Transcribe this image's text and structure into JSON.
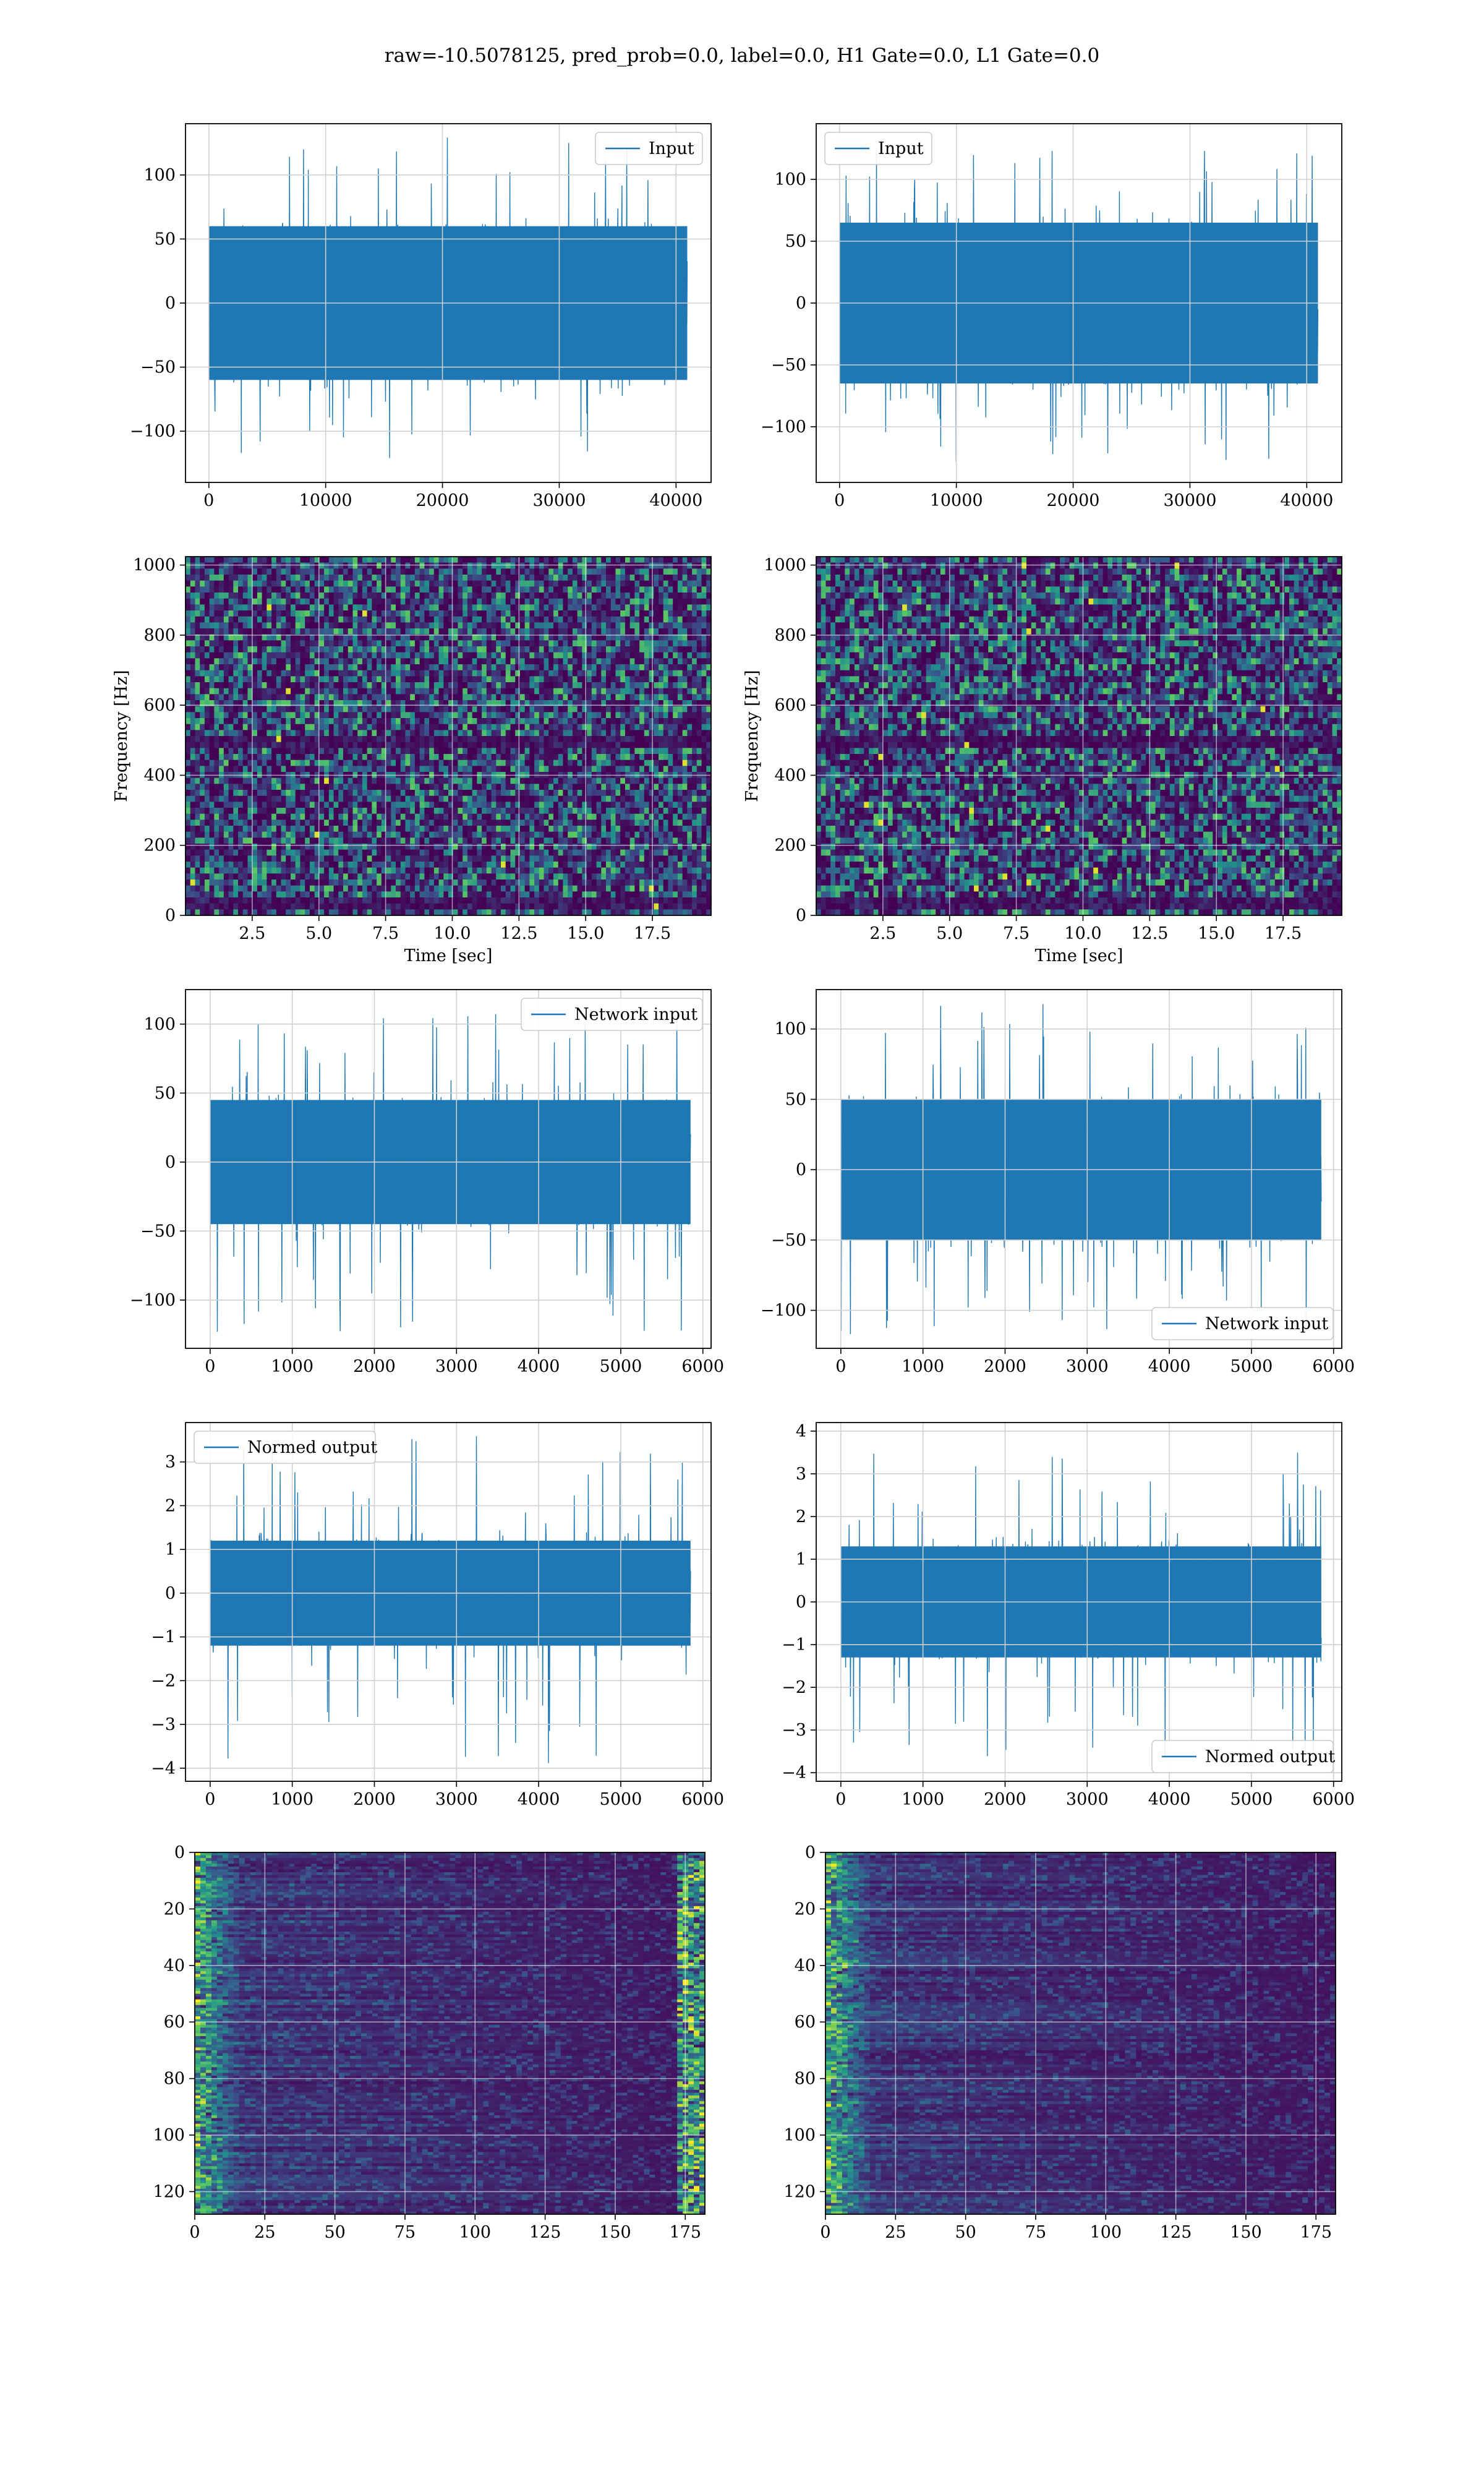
{
  "figure": {
    "suptitle": "raw=-10.5078125, pred_prob=0.0, label=0.0, H1 Gate=0.0, L1 Gate=0.0"
  },
  "colors": {
    "line": "#1f77b4",
    "grid": "#d0d0d0",
    "axis": "#000000",
    "viridis_dark": "#440154",
    "viridis_mid": "#21918c",
    "viridis_bright": "#fde725"
  },
  "chart_data": [
    {
      "id": "input-h1",
      "type": "line",
      "title": "",
      "xlabel": "",
      "ylabel": "",
      "xlim": [
        -2000,
        43000
      ],
      "ylim": [
        -140,
        140
      ],
      "xticks": [
        0,
        10000,
        20000,
        30000,
        40000
      ],
      "yticks": [
        -100,
        -50,
        0,
        50,
        100
      ],
      "legend": "top-right",
      "grid": true,
      "series": [
        {
          "name": "Input",
          "x_range": [
            0,
            40959
          ],
          "band": [
            -60,
            60
          ],
          "peaks": [
            -125,
            130
          ]
        }
      ]
    },
    {
      "id": "input-l1",
      "type": "line",
      "title": "",
      "xlabel": "",
      "ylabel": "",
      "xlim": [
        -2000,
        43000
      ],
      "ylim": [
        -145,
        145
      ],
      "xticks": [
        0,
        10000,
        20000,
        30000,
        40000
      ],
      "yticks": [
        -100,
        -50,
        0,
        50,
        100
      ],
      "legend": "top-left",
      "grid": true,
      "series": [
        {
          "name": "Input",
          "x_range": [
            0,
            40959
          ],
          "band": [
            -65,
            65
          ],
          "peaks": [
            -130,
            125
          ]
        }
      ]
    },
    {
      "id": "spectrogram-h1",
      "type": "heatmap",
      "title": "",
      "xlabel": "Time [sec]",
      "ylabel": "Frequency [Hz]",
      "xlim": [
        0,
        19.7
      ],
      "ylim": [
        0,
        1024
      ],
      "xticks": [
        2.5,
        5.0,
        7.5,
        10.0,
        12.5,
        15.0,
        17.5
      ],
      "xtick_labels": [
        "2.5",
        "5.0",
        "7.5",
        "10.0",
        "12.5",
        "15.0",
        "17.5"
      ],
      "yticks": [
        0,
        200,
        400,
        600,
        800,
        1000
      ],
      "grid": true,
      "colormap": "viridis",
      "dark_bands_hz": [
        500,
        30
      ]
    },
    {
      "id": "spectrogram-l1",
      "type": "heatmap",
      "title": "",
      "xlabel": "Time [sec]",
      "ylabel": "Frequency [Hz]",
      "xlim": [
        0,
        19.7
      ],
      "ylim": [
        0,
        1024
      ],
      "xticks": [
        2.5,
        5.0,
        7.5,
        10.0,
        12.5,
        15.0,
        17.5
      ],
      "xtick_labels": [
        "2.5",
        "5.0",
        "7.5",
        "10.0",
        "12.5",
        "15.0",
        "17.5"
      ],
      "yticks": [
        0,
        200,
        400,
        600,
        800,
        1000
      ],
      "grid": true,
      "colormap": "viridis",
      "dark_bands_hz": [
        500,
        30
      ]
    },
    {
      "id": "network-input-h1",
      "type": "line",
      "title": "",
      "xlabel": "",
      "ylabel": "",
      "xlim": [
        -300,
        6100
      ],
      "ylim": [
        -135,
        125
      ],
      "xticks": [
        0,
        1000,
        2000,
        3000,
        4000,
        5000,
        6000
      ],
      "yticks": [
        -100,
        -50,
        0,
        50,
        100
      ],
      "legend": "top-right",
      "grid": true,
      "series": [
        {
          "name": "Network input",
          "x_range": [
            0,
            5850
          ],
          "band": [
            -45,
            45
          ],
          "peaks": [
            -125,
            110
          ]
        }
      ]
    },
    {
      "id": "network-input-l1",
      "type": "line",
      "title": "",
      "xlabel": "",
      "ylabel": "",
      "xlim": [
        -300,
        6100
      ],
      "ylim": [
        -127,
        128
      ],
      "xticks": [
        0,
        1000,
        2000,
        3000,
        4000,
        5000,
        6000
      ],
      "yticks": [
        -100,
        -50,
        0,
        50,
        100
      ],
      "legend": "bottom-right",
      "grid": true,
      "series": [
        {
          "name": "Network input",
          "x_range": [
            0,
            5850
          ],
          "band": [
            -50,
            50
          ],
          "peaks": [
            -117,
            118
          ]
        }
      ]
    },
    {
      "id": "normed-output-h1",
      "type": "line",
      "title": "",
      "xlabel": "",
      "ylabel": "",
      "xlim": [
        -300,
        6100
      ],
      "ylim": [
        -4.3,
        3.9
      ],
      "xticks": [
        0,
        1000,
        2000,
        3000,
        4000,
        5000,
        6000
      ],
      "yticks": [
        -4,
        -3,
        -2,
        -1,
        0,
        1,
        2,
        3
      ],
      "legend": "top-left",
      "grid": true,
      "series": [
        {
          "name": "Normed output",
          "x_range": [
            0,
            5850
          ],
          "band": [
            -1.2,
            1.2
          ],
          "peaks": [
            -4.0,
            3.6
          ]
        }
      ]
    },
    {
      "id": "normed-output-l1",
      "type": "line",
      "title": "",
      "xlabel": "",
      "ylabel": "",
      "xlim": [
        -300,
        6100
      ],
      "ylim": [
        -4.2,
        4.2
      ],
      "xticks": [
        0,
        1000,
        2000,
        3000,
        4000,
        5000,
        6000
      ],
      "yticks": [
        -4,
        -3,
        -2,
        -1,
        0,
        1,
        2,
        3,
        4
      ],
      "legend": "bottom-right",
      "grid": true,
      "series": [
        {
          "name": "Normed output",
          "x_range": [
            0,
            5850
          ],
          "band": [
            -1.3,
            1.3
          ],
          "peaks": [
            -3.7,
            3.7
          ]
        }
      ]
    },
    {
      "id": "activation-map-h1",
      "type": "heatmap",
      "title": "",
      "xlabel": "",
      "ylabel": "",
      "xlim": [
        0,
        182
      ],
      "ylim": [
        128,
        0
      ],
      "xticks": [
        0,
        25,
        50,
        75,
        100,
        125,
        150,
        175
      ],
      "yticks": [
        0,
        20,
        40,
        60,
        80,
        100,
        120
      ],
      "grid": true,
      "colormap": "viridis",
      "hot_edges": [
        "left",
        "right"
      ]
    },
    {
      "id": "activation-map-l1",
      "type": "heatmap",
      "title": "",
      "xlabel": "",
      "ylabel": "",
      "xlim": [
        0,
        182
      ],
      "ylim": [
        128,
        0
      ],
      "xticks": [
        0,
        25,
        50,
        75,
        100,
        125,
        150,
        175
      ],
      "yticks": [
        0,
        20,
        40,
        60,
        80,
        100,
        120
      ],
      "grid": true,
      "colormap": "viridis",
      "hot_edges": [
        "left"
      ]
    }
  ]
}
